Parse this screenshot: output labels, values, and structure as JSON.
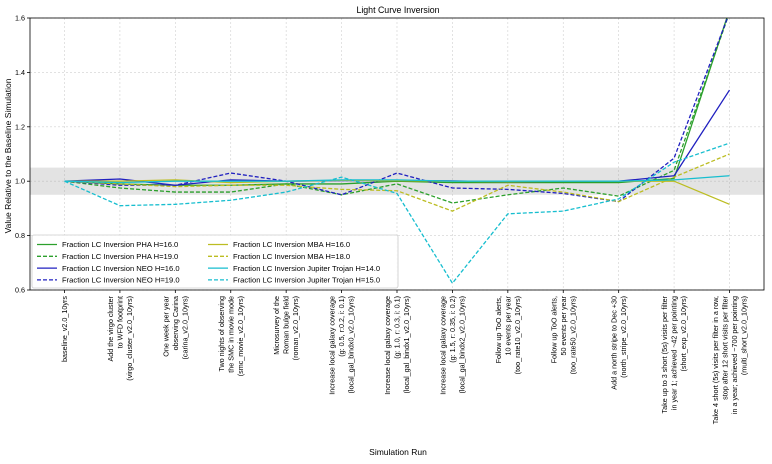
{
  "chart_data": {
    "type": "line",
    "title": "Light Curve Inversion",
    "xlabel": "Simulation Run",
    "ylabel": "Value Relative to the Baseline Simulation",
    "ylim": [
      0.6,
      1.6
    ],
    "yticks": [
      "0.6",
      "0.8",
      "1.0",
      "1.2",
      "1.4",
      "1.6"
    ],
    "grid": true,
    "legend_position": "lower-left",
    "reference_band": [
      0.95,
      1.05
    ],
    "categories": [
      [
        "baseline_v2.0_10yrs"
      ],
      [
        "Add the virgo cluster",
        "to WFD footprint",
        "(virgo_cluster_v2.0_10yrs)"
      ],
      [
        "One week per year",
        "observing Carina",
        "(carina_v2.0_10yrs)"
      ],
      [
        "Two nights of observing",
        "the SMC in movie mode",
        "(smc_movie_v2.0_10yrs)"
      ],
      [
        "Microsurvey of the",
        "Roman bulge field",
        "(roman_v2.0_10yrs)"
      ],
      [
        "Increase local galaxy coverage",
        "(g: 0.5, r:0.2, i: 0.1)",
        "(local_gal_bindx0_v2.0_10yrs)"
      ],
      [
        "Increase local galaxy coverage",
        "(g: 1.0, r: 0.3, i: 0.1)",
        "(local_gal_bindx1_v2.0_10yrs)"
      ],
      [
        "Increase local galaxy coverage",
        "(g: 1.5, r: 0.35, i: 0.2)",
        "(local_gal_bindx2_v2.0_10yrs)"
      ],
      [
        "Follow up ToO alerts,",
        "10 events per year",
        "(too_rate10_v2.0_10yrs)"
      ],
      [
        "Follow up ToO alerts,",
        "50 events per year",
        "(too_rate50_v2.0_10yrs)"
      ],
      [
        "Add a north stripe to Dec +30",
        "(north_stripe_v2.0_10yrs)"
      ],
      [
        "Take up to 3 short (5s) visits per filter",
        "in year 1; achieved ~42 per pointing",
        "(short_exp_v2.0_10yrs)"
      ],
      [
        "Take 4 short (5s) visits per filter in a row,",
        "stop after 12 short visits per filter",
        "in a year; achieved ~700 per pointing",
        "(multi_short_v2.0_10yrs)"
      ]
    ],
    "series": [
      {
        "name": "Fraction LC Inversion PHA H=16.0",
        "color": "#2ca02c",
        "dash": "solid",
        "values": [
          1.0,
          0.99,
          0.985,
          0.985,
          0.99,
          0.99,
          1.0,
          0.995,
          0.995,
          0.995,
          0.995,
          1.01,
          1.63
        ]
      },
      {
        "name": "Fraction LC Inversion PHA H=19.0",
        "color": "#2ca02c",
        "dash": "dashed",
        "values": [
          1.0,
          0.975,
          0.96,
          0.96,
          0.99,
          0.95,
          0.99,
          0.92,
          0.95,
          0.975,
          0.945,
          1.04,
          1.62
        ]
      },
      {
        "name": "Fraction LC Inversion NEO H=16.0",
        "color": "#2020c0",
        "dash": "solid",
        "values": [
          1.0,
          1.008,
          0.985,
          1.005,
          1.0,
          1.002,
          1.003,
          1.001,
          0.998,
          1.0,
          1.0,
          1.02,
          1.335
        ]
      },
      {
        "name": "Fraction LC Inversion NEO H=19.0",
        "color": "#2020c0",
        "dash": "dashed",
        "values": [
          1.0,
          0.985,
          0.985,
          1.03,
          1.0,
          0.95,
          1.03,
          0.975,
          0.97,
          0.955,
          0.925,
          1.085,
          1.62
        ]
      },
      {
        "name": "Fraction LC Inversion MBA H=16.0",
        "color": "#bcbd22",
        "dash": "solid",
        "values": [
          1.0,
          1.0,
          1.005,
          0.995,
          1.0,
          1.003,
          1.002,
          1.0,
          0.998,
          1.0,
          1.0,
          1.0,
          0.915
        ]
      },
      {
        "name": "Fraction LC Inversion MBA H=18.0",
        "color": "#bcbd22",
        "dash": "dashed",
        "values": [
          1.0,
          0.99,
          0.98,
          0.985,
          0.985,
          0.97,
          0.965,
          0.89,
          0.985,
          0.96,
          0.925,
          1.015,
          1.1
        ]
      },
      {
        "name": "Fraction LC Inversion Jupiter Trojan H=14.0",
        "color": "#17becf",
        "dash": "solid",
        "values": [
          1.0,
          0.995,
          1.0,
          1.0,
          1.0,
          1.005,
          1.005,
          1.0,
          1.0,
          1.0,
          1.0,
          1.005,
          1.02
        ]
      },
      {
        "name": "Fraction LC Inversion Jupiter Trojan H=15.0",
        "color": "#17becf",
        "dash": "dashed",
        "values": [
          1.0,
          0.91,
          0.915,
          0.93,
          0.96,
          1.015,
          0.955,
          0.625,
          0.88,
          0.89,
          0.935,
          1.07,
          1.14
        ]
      }
    ]
  }
}
